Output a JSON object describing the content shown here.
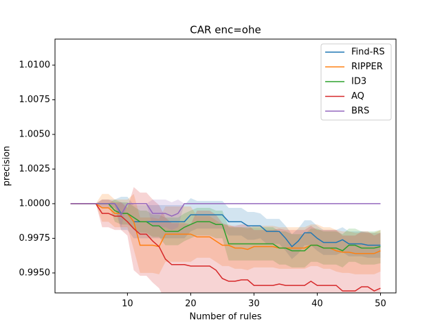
{
  "chart_data": {
    "type": "line",
    "title": "CAR enc=ohe",
    "x_label": "Number of rules",
    "y_label": "precision",
    "x": [
      1,
      2,
      3,
      4,
      5,
      6,
      7,
      8,
      9,
      10,
      11,
      12,
      13,
      14,
      15,
      16,
      17,
      18,
      19,
      20,
      21,
      22,
      23,
      24,
      25,
      26,
      27,
      28,
      29,
      30,
      31,
      32,
      33,
      34,
      35,
      36,
      37,
      38,
      39,
      40,
      41,
      42,
      43,
      44,
      45,
      46,
      47,
      48,
      49,
      50
    ],
    "xlim": [
      -1.45,
      52.45
    ],
    "xticks": [
      10,
      20,
      30,
      40,
      50
    ],
    "ylim": [
      0.99356,
      1.01188
    ],
    "yticks": [
      {
        "value": 0.995,
        "label": "0.9950"
      },
      0.9975,
      {
        "value": 1.0,
        "label": "1.0000"
      },
      1.0025,
      {
        "value": 1.005,
        "label": "1.0050"
      },
      1.0075,
      {
        "value": 1.01,
        "label": "1.0100"
      }
    ],
    "legend": "upper right",
    "band_opacity": 0.2,
    "series": [
      {
        "name": "Find-RS",
        "color": "#1f77b4",
        "values": [
          1,
          1,
          1,
          1,
          1,
          1,
          1,
          1,
          0.9993,
          0.9993,
          0.9987,
          0.9987,
          0.9987,
          0.9987,
          0.9987,
          0.9987,
          0.9987,
          0.9987,
          0.9987,
          0.9992,
          0.9992,
          0.9992,
          0.9992,
          0.9992,
          0.9992,
          0.9987,
          0.9987,
          0.9987,
          0.9984,
          0.9984,
          0.9984,
          0.998,
          0.998,
          0.998,
          0.9975,
          0.9969,
          0.9973,
          0.9979,
          0.9979,
          0.9975,
          0.9972,
          0.9972,
          0.9972,
          0.9974,
          0.9971,
          0.9971,
          0.9971,
          0.997,
          0.997,
          0.997
        ],
        "errors": [
          0,
          0,
          0,
          0,
          0,
          0.0003,
          0.0003,
          0.0003,
          0.0012,
          0.0012,
          0.0012,
          0.0012,
          0.0012,
          0.0012,
          0.0012,
          0.0012,
          0.0012,
          0.0012,
          0.0012,
          0.0012,
          0.001,
          0.001,
          0.001,
          0.001,
          0.001,
          0.001,
          0.001,
          0.001,
          0.001,
          0.001,
          0.0009,
          0.0009,
          0.0009,
          0.0009,
          0.0009,
          0.0009,
          0.0009,
          0.0009,
          0.0009,
          0.0009,
          0.0009,
          0.0009,
          0.0009,
          0.0009,
          0.0009,
          0.0009,
          0.0009,
          0.0009,
          0.0009,
          0.0009
        ]
      },
      {
        "name": "RIPPER",
        "color": "#ff7f0e",
        "values": [
          1,
          1,
          1,
          1,
          1,
          0.9997,
          0.9997,
          0.9993,
          0.9993,
          0.9993,
          0.9987,
          0.997,
          0.997,
          0.997,
          0.9969,
          0.9978,
          0.9978,
          0.9978,
          0.9978,
          0.9978,
          0.9976,
          0.9976,
          0.9976,
          0.9973,
          0.997,
          0.997,
          0.9968,
          0.9968,
          0.9967,
          0.9969,
          0.9969,
          0.9969,
          0.9969,
          0.9968,
          0.9968,
          0.9968,
          0.9968,
          0.9968,
          0.997,
          0.997,
          0.9968,
          0.9968,
          0.9966,
          0.9965,
          0.9965,
          0.9964,
          0.9964,
          0.9964,
          0.9964,
          0.9966
        ],
        "errors": [
          0,
          0,
          0,
          0,
          0,
          0.001,
          0.001,
          0.001,
          0.001,
          0.001,
          0.002,
          0.002,
          0.002,
          0.002,
          0.002,
          0.002,
          0.002,
          0.002,
          0.002,
          0.002,
          0.0015,
          0.0015,
          0.0015,
          0.0015,
          0.0015,
          0.0015,
          0.0015,
          0.0015,
          0.0015,
          0.0015,
          0.0015,
          0.0015,
          0.0015,
          0.0015,
          0.0015,
          0.0015,
          0.0015,
          0.0015,
          0.0015,
          0.0015,
          0.0015,
          0.0015,
          0.0015,
          0.0015,
          0.0015,
          0.0015,
          0.0015,
          0.0015,
          0.0015,
          0.0015
        ]
      },
      {
        "name": "ID3",
        "color": "#2ca02c",
        "values": [
          1,
          1,
          1,
          1,
          1,
          1,
          1,
          0.9995,
          0.9993,
          0.9993,
          0.999,
          0.9987,
          0.9987,
          0.9984,
          0.9984,
          0.998,
          0.998,
          0.998,
          0.9983,
          0.9985,
          0.9987,
          0.9987,
          0.9987,
          0.9985,
          0.9985,
          0.9971,
          0.9971,
          0.9971,
          0.9971,
          0.9971,
          0.9971,
          0.9971,
          0.9971,
          0.9968,
          0.9968,
          0.9966,
          0.9966,
          0.9966,
          0.997,
          0.997,
          0.9968,
          0.9968,
          0.9968,
          0.9966,
          0.997,
          0.997,
          0.9968,
          0.9968,
          0.9968,
          0.9969
        ],
        "errors": [
          0,
          0,
          0,
          0,
          0,
          0,
          0,
          0.0008,
          0.0008,
          0.0008,
          0.0008,
          0.0008,
          0.0008,
          0.0008,
          0.0008,
          0.001,
          0.001,
          0.001,
          0.001,
          0.001,
          0.001,
          0.001,
          0.001,
          0.001,
          0.001,
          0.0012,
          0.0012,
          0.0012,
          0.0012,
          0.0012,
          0.0012,
          0.0012,
          0.0012,
          0.0012,
          0.0012,
          0.0012,
          0.0012,
          0.0012,
          0.0012,
          0.0012,
          0.0012,
          0.0012,
          0.0012,
          0.0012,
          0.0012,
          0.0012,
          0.0012,
          0.0012,
          0.0012,
          0.0012
        ]
      },
      {
        "name": "AQ",
        "color": "#d62728",
        "values": [
          1,
          1,
          1,
          1,
          1,
          0.9993,
          0.9993,
          0.9991,
          0.9991,
          0.9987,
          0.9982,
          0.9978,
          0.9978,
          0.9973,
          0.9969,
          0.996,
          0.9956,
          0.9956,
          0.9956,
          0.9955,
          0.9955,
          0.9955,
          0.9955,
          0.9952,
          0.9946,
          0.9944,
          0.9944,
          0.9945,
          0.9945,
          0.9941,
          0.9941,
          0.9941,
          0.9941,
          0.9942,
          0.9941,
          0.9941,
          0.9941,
          0.9941,
          0.9944,
          0.9941,
          0.9941,
          0.9941,
          0.9941,
          0.9937,
          0.9937,
          0.9937,
          0.994,
          0.994,
          0.9937,
          0.9939
        ],
        "errors": [
          0,
          0,
          0,
          0,
          0,
          0.001,
          0.001,
          0.001,
          0.001,
          0.001,
          0.003,
          0.003,
          0.003,
          0.003,
          0.003,
          0.003,
          0.003,
          0.003,
          0.003,
          0.003,
          0.004,
          0.004,
          0.004,
          0.004,
          0.004,
          0.004,
          0.004,
          0.004,
          0.004,
          0.004,
          0.004,
          0.004,
          0.004,
          0.004,
          0.004,
          0.004,
          0.004,
          0.004,
          0.004,
          0.004,
          0.004,
          0.004,
          0.004,
          0.004,
          0.004,
          0.004,
          0.004,
          0.004,
          0.004,
          0.004
        ]
      },
      {
        "name": "BRS",
        "color": "#9467bd",
        "values": [
          1,
          1,
          1,
          1,
          1,
          1,
          1,
          1,
          0.9992,
          1,
          1,
          1,
          1,
          0.9993,
          0.9993,
          0.9993,
          0.9991,
          0.9993,
          1,
          1,
          1,
          1,
          1,
          1,
          1,
          1,
          1,
          1,
          1,
          1,
          1,
          1,
          1,
          1,
          1,
          1,
          1,
          1,
          1,
          1,
          1,
          1,
          1,
          1,
          1,
          1,
          1,
          1,
          1,
          1
        ],
        "errors": [
          0,
          0,
          0,
          0,
          0,
          0,
          0,
          0,
          0.0009,
          0,
          0,
          0,
          0,
          0.001,
          0.001,
          0.001,
          0.001,
          0.001,
          0,
          0,
          0,
          0,
          0,
          0,
          0,
          0,
          0,
          0,
          0,
          0,
          0,
          0,
          0,
          0,
          0,
          0,
          0,
          0,
          0,
          0,
          0,
          0,
          0,
          0,
          0,
          0,
          0,
          0,
          0,
          0
        ]
      }
    ]
  }
}
